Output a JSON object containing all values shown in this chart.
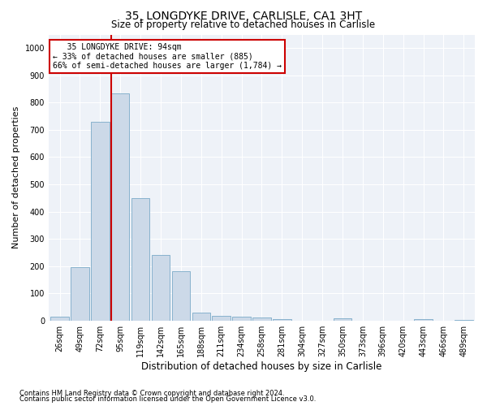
{
  "title_main": "35, LONGDYKE DRIVE, CARLISLE, CA1 3HT",
  "title_sub": "Size of property relative to detached houses in Carlisle",
  "xlabel": "Distribution of detached houses by size in Carlisle",
  "ylabel": "Number of detached properties",
  "footnote1": "Contains HM Land Registry data © Crown copyright and database right 2024.",
  "footnote2": "Contains public sector information licensed under the Open Government Licence v3.0.",
  "annotation_line1": "   35 LONGDYKE DRIVE: 94sqm",
  "annotation_line2": "← 33% of detached houses are smaller (885)",
  "annotation_line3": "66% of semi-detached houses are larger (1,784) →",
  "bar_color": "#ccd9e8",
  "bar_edge_color": "#7aaac8",
  "highlight_bar_index": 3,
  "vline_color": "#cc0000",
  "categories": [
    "26sqm",
    "49sqm",
    "72sqm",
    "95sqm",
    "119sqm",
    "142sqm",
    "165sqm",
    "188sqm",
    "211sqm",
    "234sqm",
    "258sqm",
    "281sqm",
    "304sqm",
    "327sqm",
    "350sqm",
    "373sqm",
    "396sqm",
    "420sqm",
    "443sqm",
    "466sqm",
    "489sqm"
  ],
  "values": [
    13,
    195,
    730,
    835,
    450,
    240,
    180,
    30,
    17,
    15,
    12,
    4,
    0,
    0,
    7,
    0,
    0,
    0,
    5,
    0,
    3
  ],
  "ylim": [
    0,
    1050
  ],
  "yticks": [
    0,
    100,
    200,
    300,
    400,
    500,
    600,
    700,
    800,
    900,
    1000
  ],
  "background_color": "#eef2f8",
  "title_fontsize": 10,
  "subtitle_fontsize": 8.5,
  "ylabel_fontsize": 8,
  "xlabel_fontsize": 8.5,
  "tick_fontsize": 7,
  "footnote_fontsize": 6
}
